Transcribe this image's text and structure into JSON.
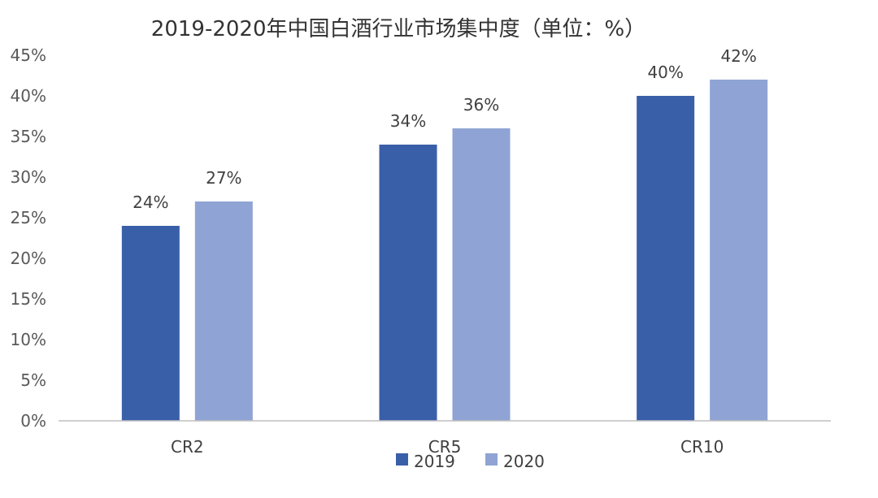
{
  "chart_data": {
    "type": "bar",
    "title": "2019-2020年中国白酒行业市场集中度（单位：%）",
    "xlabel": "",
    "ylabel": "",
    "categories": [
      "CR2",
      "CR5",
      "CR10"
    ],
    "series": [
      {
        "name": "2019",
        "values": [
          24,
          34,
          40
        ],
        "color": "#3A5FA9"
      },
      {
        "name": "2020",
        "values": [
          27,
          36,
          42
        ],
        "color": "#8FA4D4"
      }
    ],
    "data_labels": [
      [
        "24%",
        "34%",
        "40%"
      ],
      [
        "27%",
        "36%",
        "42%"
      ]
    ],
    "y_ticks": [
      "0%",
      "5%",
      "10%",
      "15%",
      "20%",
      "25%",
      "30%",
      "35%",
      "40%",
      "45%"
    ],
    "ylim": [
      0,
      45
    ],
    "grid": false,
    "legend_position": "bottom"
  }
}
